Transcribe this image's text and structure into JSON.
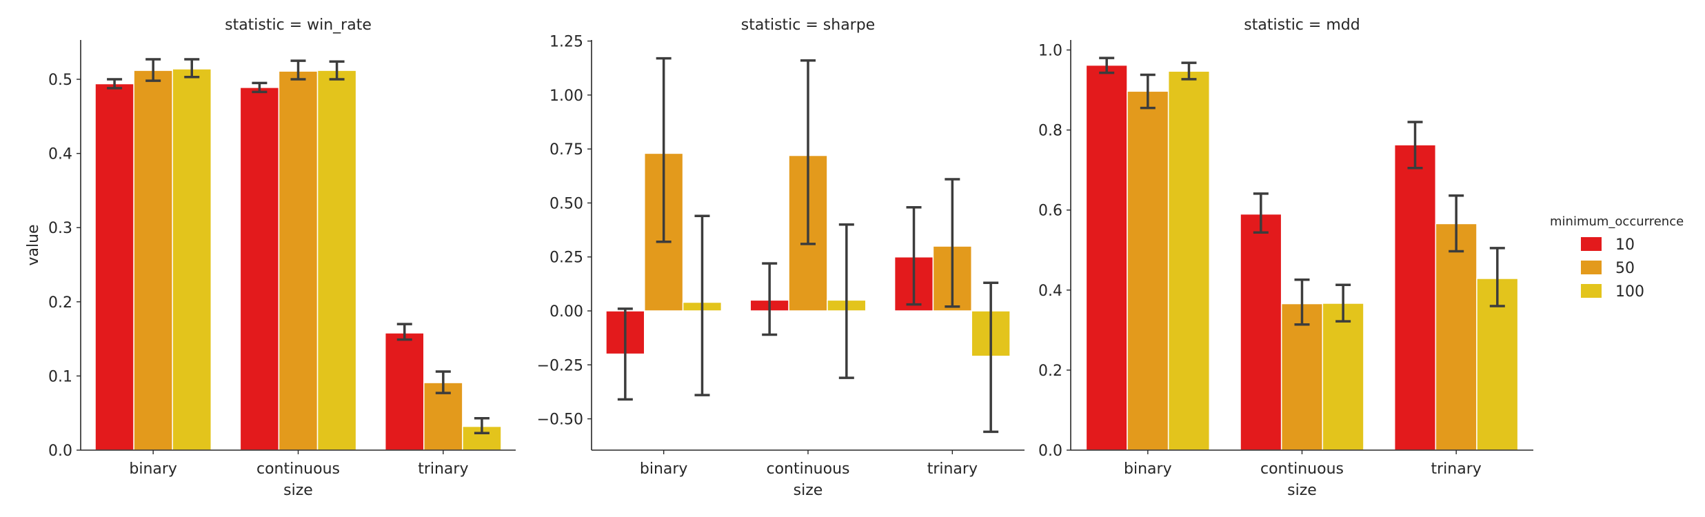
{
  "chart_data": {
    "type": "bar",
    "legend": {
      "title": "minimum_occurrence",
      "placement": "right",
      "entries": [
        {
          "label": "10",
          "color": "#e31a1c"
        },
        {
          "label": "50",
          "color": "#e39a1c"
        },
        {
          "label": "100",
          "color": "#e3c41c"
        }
      ]
    },
    "panels": [
      {
        "title": "statistic = win_rate",
        "xlabel": "size",
        "ylabel": "value",
        "categories": [
          "binary",
          "continuous",
          "trinary"
        ],
        "ylim": [
          0,
          0.553
        ],
        "yticks": [
          "0.0",
          "0.1",
          "0.2",
          "0.3",
          "0.4",
          "0.5"
        ],
        "ytick_values": [
          0,
          0.1,
          0.2,
          0.3,
          0.4,
          0.5
        ],
        "series": [
          {
            "name": "10",
            "values": [
              0.494,
              0.489,
              0.158
            ],
            "err_low": [
              0.488,
              0.483,
              0.149
            ],
            "err_high": [
              0.5,
              0.495,
              0.17
            ]
          },
          {
            "name": "50",
            "values": [
              0.512,
              0.511,
              0.091
            ],
            "err_low": [
              0.498,
              0.5,
              0.077
            ],
            "err_high": [
              0.527,
              0.525,
              0.106
            ]
          },
          {
            "name": "100",
            "values": [
              0.514,
              0.512,
              0.032
            ],
            "err_low": [
              0.503,
              0.5,
              0.023
            ],
            "err_high": [
              0.527,
              0.524,
              0.043
            ]
          }
        ]
      },
      {
        "title": "statistic = sharpe",
        "xlabel": "size",
        "ylabel": "",
        "categories": [
          "binary",
          "continuous",
          "trinary"
        ],
        "ylim": [
          -0.645,
          1.255
        ],
        "yticks": [
          "−0.50",
          "−0.25",
          "0.00",
          "0.25",
          "0.50",
          "0.75",
          "1.00",
          "1.25"
        ],
        "ytick_values": [
          -0.5,
          -0.25,
          0,
          0.25,
          0.5,
          0.75,
          1.0,
          1.25
        ],
        "series": [
          {
            "name": "10",
            "values": [
              -0.2,
              0.05,
              0.25
            ],
            "err_low": [
              -0.41,
              -0.11,
              0.03
            ],
            "err_high": [
              0.01,
              0.22,
              0.48
            ]
          },
          {
            "name": "50",
            "values": [
              0.73,
              0.72,
              0.3
            ],
            "err_low": [
              0.32,
              0.31,
              0.02
            ],
            "err_high": [
              1.17,
              1.16,
              0.61
            ]
          },
          {
            "name": "100",
            "values": [
              0.04,
              0.05,
              -0.21
            ],
            "err_low": [
              -0.39,
              -0.31,
              -0.56
            ],
            "err_high": [
              0.44,
              0.4,
              0.13
            ]
          }
        ]
      },
      {
        "title": "statistic = mdd",
        "xlabel": "size",
        "ylabel": "",
        "categories": [
          "binary",
          "continuous",
          "trinary"
        ],
        "ylim": [
          0,
          1.025
        ],
        "yticks": [
          "0.0",
          "0.2",
          "0.4",
          "0.6",
          "0.8",
          "1.0"
        ],
        "ytick_values": [
          0,
          0.2,
          0.4,
          0.6,
          0.8,
          1.0
        ],
        "series": [
          {
            "name": "10",
            "values": [
              0.962,
              0.59,
              0.763
            ],
            "err_low": [
              0.943,
              0.544,
              0.705
            ],
            "err_high": [
              0.98,
              0.641,
              0.82
            ]
          },
          {
            "name": "50",
            "values": [
              0.897,
              0.366,
              0.566
            ],
            "err_low": [
              0.855,
              0.314,
              0.497
            ],
            "err_high": [
              0.938,
              0.426,
              0.636
            ]
          },
          {
            "name": "100",
            "values": [
              0.947,
              0.367,
              0.429
            ],
            "err_low": [
              0.927,
              0.322,
              0.36
            ],
            "err_high": [
              0.968,
              0.413,
              0.505
            ]
          }
        ]
      }
    ]
  }
}
